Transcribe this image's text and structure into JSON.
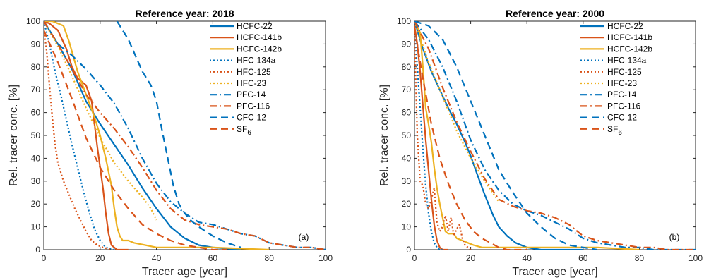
{
  "chart_data": [
    {
      "type": "line",
      "title": "Reference year: 2018",
      "xlabel": "Tracer age [year]",
      "ylabel": "Rel. tracer conc. [%]",
      "panel_label": "(a)",
      "xlim": [
        0,
        100
      ],
      "ylim": [
        0,
        100
      ],
      "xticks": [
        0,
        20,
        40,
        60,
        80,
        100
      ],
      "yticks": [
        0,
        10,
        20,
        30,
        40,
        50,
        60,
        70,
        80,
        90,
        100
      ],
      "grid": false,
      "legend_position": "top-right",
      "series": [
        {
          "name": "HCFC-22",
          "color": "#0072BD",
          "dash": "solid",
          "x": [
            0,
            5,
            10,
            15,
            20,
            25,
            30,
            35,
            40,
            45,
            50,
            55,
            60,
            70
          ],
          "y": [
            100,
            90,
            79,
            65,
            55,
            46,
            37,
            27,
            18,
            10,
            5,
            2,
            1,
            0
          ]
        },
        {
          "name": "HCFC-141b",
          "color": "#D95319",
          "dash": "solid",
          "x": [
            0,
            2,
            5,
            8,
            10,
            12,
            15,
            17,
            19,
            21,
            22,
            23,
            24,
            25,
            26,
            30
          ],
          "y": [
            100,
            99,
            96,
            88,
            80,
            75,
            72,
            65,
            45,
            27,
            16,
            7,
            2,
            1,
            0,
            0
          ]
        },
        {
          "name": "HCFC-142b",
          "color": "#EDB120",
          "dash": "solid",
          "x": [
            0,
            3,
            5,
            7,
            9,
            12,
            15,
            18,
            20,
            22,
            24,
            25,
            26,
            27,
            28,
            30,
            32,
            36,
            40,
            50,
            60,
            80
          ],
          "y": [
            100,
            100,
            99,
            98,
            91,
            78,
            68,
            58,
            50,
            40,
            28,
            18,
            10,
            6,
            4,
            4,
            3,
            2,
            1,
            1,
            1,
            0
          ]
        },
        {
          "name": "HFC-134a",
          "color": "#0072BD",
          "dash": "dot",
          "x": [
            0,
            2,
            4,
            6,
            8,
            10,
            12,
            14,
            16,
            18,
            20,
            22,
            25
          ],
          "y": [
            100,
            90,
            78,
            68,
            57,
            46,
            36,
            26,
            17,
            9,
            4,
            1,
            0
          ]
        },
        {
          "name": "HFC-125",
          "color": "#D95319",
          "dash": "dot",
          "x": [
            0,
            1,
            2,
            3,
            4,
            5,
            7,
            9,
            11,
            13,
            15,
            17,
            19,
            21,
            24
          ],
          "y": [
            97,
            87,
            72,
            58,
            46,
            38,
            30,
            24,
            18,
            13,
            8,
            4,
            2,
            1,
            0
          ]
        },
        {
          "name": "HFC-23",
          "color": "#EDB120",
          "dash": "dot",
          "x": [
            0,
            5,
            10,
            15,
            20,
            25,
            30,
            35,
            38,
            40
          ],
          "y": [
            100,
            89,
            76,
            62,
            49,
            38,
            30,
            23,
            18,
            13
          ]
        },
        {
          "name": "PFC-14",
          "color": "#0072BD",
          "dash": "dashdot",
          "x": [
            0,
            5,
            10,
            15,
            20,
            25,
            30,
            35,
            40,
            45,
            50,
            55,
            60,
            65,
            70,
            75,
            80,
            85,
            90,
            95,
            100
          ],
          "y": [
            100,
            90,
            85,
            79,
            72,
            64,
            53,
            40,
            29,
            21,
            16,
            12,
            11,
            9,
            7,
            6,
            3,
            2,
            1,
            1,
            0
          ]
        },
        {
          "name": "PFC-116",
          "color": "#D95319",
          "dash": "dashdot",
          "x": [
            0,
            5,
            10,
            15,
            20,
            25,
            30,
            35,
            40,
            45,
            50,
            55,
            60,
            65,
            70,
            75,
            80,
            85,
            90,
            95,
            100
          ],
          "y": [
            100,
            90,
            79,
            68,
            60,
            53,
            45,
            36,
            26,
            18,
            13,
            11,
            10,
            9,
            7,
            6,
            3,
            2,
            1,
            1,
            0
          ]
        },
        {
          "name": "CFC-12",
          "color": "#0072BD",
          "dash": "dash",
          "x": [
            26,
            30,
            35,
            38,
            40,
            42,
            44,
            46,
            48,
            50,
            52,
            55,
            60,
            65,
            70
          ],
          "y": [
            100,
            92,
            78,
            72,
            65,
            52,
            40,
            28,
            20,
            16,
            13,
            10,
            6,
            3,
            1
          ]
        },
        {
          "name": "SF6",
          "color": "#D95319",
          "dash": "dash",
          "x": [
            0,
            5,
            10,
            15,
            20,
            25,
            30,
            35,
            40,
            45,
            50,
            55,
            60,
            65
          ],
          "y": [
            96,
            82,
            66,
            49,
            36,
            26,
            18,
            11,
            7,
            4,
            2,
            1,
            0,
            0
          ]
        }
      ]
    },
    {
      "type": "line",
      "title": "Reference year: 2000",
      "xlabel": "Tracer age [year]",
      "ylabel": "Rel. tracer conc. [%]",
      "panel_label": "(b)",
      "xlim": [
        0,
        100
      ],
      "ylim": [
        0,
        100
      ],
      "xticks": [
        0,
        20,
        40,
        60,
        80,
        100
      ],
      "yticks": [
        0,
        10,
        20,
        30,
        40,
        50,
        60,
        70,
        80,
        90,
        100
      ],
      "grid": false,
      "legend_position": "top-right",
      "series": [
        {
          "name": "HCFC-22",
          "color": "#0072BD",
          "dash": "solid",
          "x": [
            0,
            3,
            6,
            9,
            12,
            15,
            18,
            20,
            22,
            25,
            28,
            30,
            33,
            36,
            40,
            45,
            50,
            60
          ],
          "y": [
            100,
            88,
            78,
            70,
            62,
            55,
            47,
            41,
            34,
            24,
            15,
            10,
            6,
            3,
            1,
            0,
            0,
            0
          ]
        },
        {
          "name": "HCFC-141b",
          "color": "#D95319",
          "dash": "solid",
          "x": [
            0,
            1,
            2,
            3,
            4,
            5,
            6,
            7,
            8,
            9,
            10,
            12
          ],
          "y": [
            98,
            90,
            78,
            63,
            48,
            35,
            22,
            11,
            4,
            1,
            0,
            0
          ]
        },
        {
          "name": "HCFC-142b",
          "color": "#EDB120",
          "dash": "solid",
          "x": [
            0,
            2,
            3,
            4,
            5,
            6,
            7,
            8,
            9,
            10,
            11,
            12,
            13,
            14,
            15,
            17,
            19,
            21,
            24,
            28,
            35,
            45,
            55,
            65,
            80
          ],
          "y": [
            100,
            95,
            80,
            62,
            55,
            47,
            36,
            27,
            20,
            14,
            8,
            7,
            7,
            7,
            5,
            4,
            3,
            2,
            1,
            1,
            1,
            1,
            1,
            1,
            0
          ]
        },
        {
          "name": "HFC-134a",
          "color": "#0072BD",
          "dash": "dot",
          "x": [
            0,
            1,
            2,
            3,
            4,
            5,
            6,
            7,
            8,
            9,
            10
          ],
          "y": [
            95,
            80,
            62,
            44,
            28,
            16,
            8,
            3,
            1,
            0,
            0
          ]
        },
        {
          "name": "HFC-125",
          "color": "#D95319",
          "dash": "dot",
          "x": [
            0,
            1,
            2,
            3,
            4,
            5,
            6,
            7,
            8,
            9,
            10,
            11,
            12,
            13,
            14,
            15,
            16,
            17,
            18,
            20
          ],
          "y": [
            95,
            50,
            30,
            28,
            20,
            18,
            22,
            27,
            12,
            8,
            10,
            15,
            8,
            14,
            6,
            9,
            11,
            5,
            2,
            0
          ]
        },
        {
          "name": "HFC-23",
          "color": "#EDB120",
          "dash": "dot",
          "x": [
            0,
            5,
            10,
            15,
            20,
            25,
            30
          ],
          "y": [
            100,
            82,
            67,
            52,
            40,
            30,
            21
          ]
        },
        {
          "name": "PFC-14",
          "color": "#0072BD",
          "dash": "dashdot",
          "x": [
            0,
            5,
            10,
            15,
            20,
            25,
            30,
            35,
            40,
            45,
            50,
            55,
            60,
            65,
            70,
            75,
            80,
            85,
            90,
            95,
            100
          ],
          "y": [
            100,
            92,
            80,
            65,
            48,
            35,
            26,
            20,
            17,
            15,
            12,
            9,
            5,
            3,
            2,
            1,
            1,
            0,
            0,
            0,
            0
          ]
        },
        {
          "name": "PFC-116",
          "color": "#D95319",
          "dash": "dashdot",
          "x": [
            0,
            5,
            10,
            15,
            20,
            25,
            30,
            35,
            40,
            45,
            50,
            55,
            60,
            65,
            70,
            75,
            80,
            85,
            90,
            95,
            100
          ],
          "y": [
            100,
            88,
            71,
            56,
            43,
            31,
            22,
            19,
            17,
            16,
            14,
            11,
            6,
            4,
            3,
            2,
            1,
            1,
            0,
            0,
            0
          ]
        },
        {
          "name": "CFC-12",
          "color": "#0072BD",
          "dash": "dash",
          "x": [
            0,
            5,
            10,
            15,
            20,
            25,
            30,
            35,
            40,
            45,
            50,
            55,
            60,
            65
          ],
          "y": [
            100,
            98,
            92,
            80,
            65,
            50,
            35,
            25,
            16,
            10,
            5,
            2,
            1,
            0
          ]
        },
        {
          "name": "SF6",
          "color": "#D95319",
          "dash": "dash",
          "x": [
            0,
            3,
            6,
            9,
            12,
            15,
            18,
            21,
            24,
            27,
            30,
            33,
            36,
            40
          ],
          "y": [
            97,
            75,
            55,
            40,
            29,
            20,
            13,
            8,
            5,
            3,
            1,
            0,
            0,
            0
          ]
        }
      ]
    }
  ]
}
